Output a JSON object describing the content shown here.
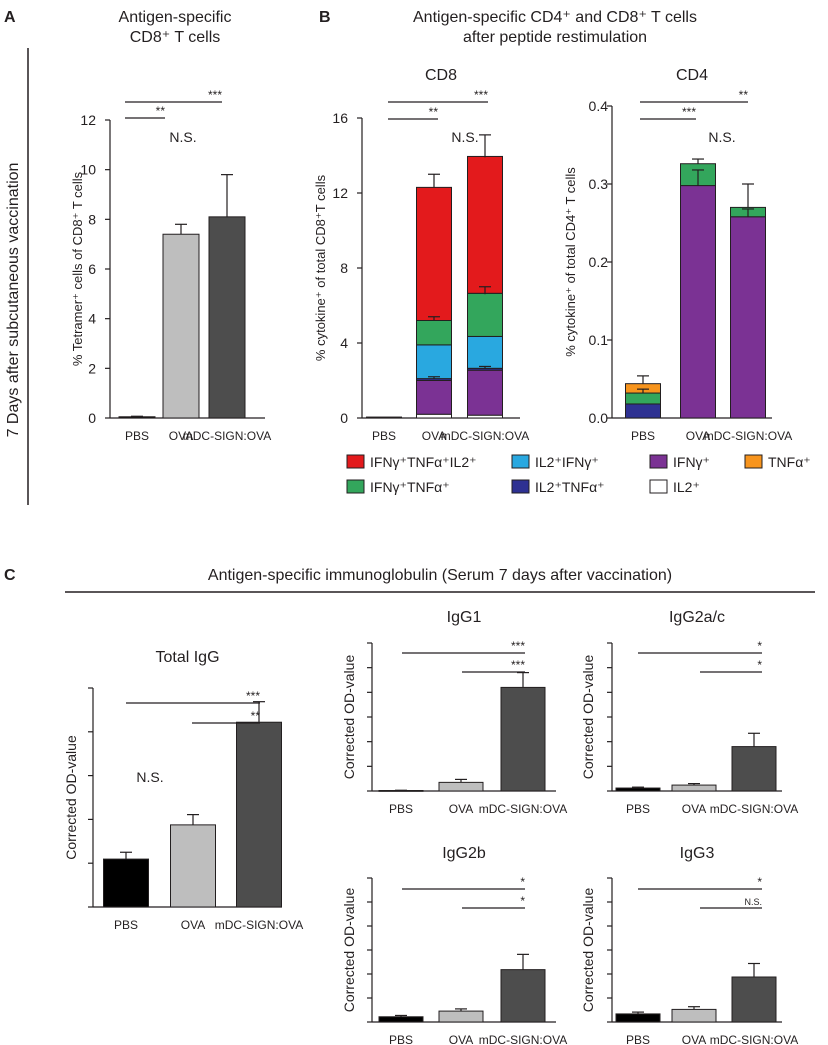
{
  "colors": {
    "pbs": "#000000",
    "ova": "#bebebe",
    "mdc": "#4d4d4d",
    "ifn_tnf_il2": "#e31a1c",
    "ifn_tnf": "#33a65c",
    "il2_ifn": "#29a8e0",
    "il2_tnf": "#2e3192",
    "ifn": "#7b3294",
    "il2": "#ffffff",
    "tnf": "#f7941d"
  },
  "panel_a": {
    "letter": "A",
    "title_line1": "Antigen-specific",
    "title_line2": "CD8⁺ T cells",
    "side_label": "7 Days after subcutaneous vaccination"
  },
  "panel_b": {
    "letter": "B",
    "title_line1": "Antigen-specific CD4⁺ and CD8⁺ T cells",
    "title_line2": "after peptide restimulation",
    "legend": [
      {
        "label": "IFNγ⁺TNFα⁺IL2⁺",
        "color": "#e31a1c"
      },
      {
        "label": "IL2⁺IFNγ⁺",
        "color": "#29a8e0"
      },
      {
        "label": "IFNγ⁺",
        "color": "#7b3294"
      },
      {
        "label": "TNFα⁺",
        "color": "#f7941d"
      },
      {
        "label": "IFNγ⁺TNFα⁺",
        "color": "#33a65c"
      },
      {
        "label": "IL2⁺TNFα⁺",
        "color": "#2e3192"
      },
      {
        "label": "IL2⁺",
        "color": "#ffffff"
      }
    ]
  },
  "panel_c": {
    "letter": "C",
    "title": "Antigen-specific immunoglobulin (Serum 7 days after vaccination)"
  },
  "chart_data": [
    {
      "id": "tetramer",
      "type": "bar",
      "title": "",
      "categories": [
        "PBS",
        "OVA",
        "mDC-SIGN:OVA"
      ],
      "values": [
        0.05,
        7.4,
        8.1
      ],
      "errors": [
        0.02,
        0.4,
        1.7
      ],
      "ylabel": "% Tetramer⁺ cells of CD8⁺ T cells",
      "ylim": [
        0,
        12
      ],
      "yticks": [
        "0",
        "2",
        "4",
        "6",
        "8",
        "10",
        "12"
      ],
      "significance": [
        {
          "from": 0,
          "to": 2,
          "label": "***"
        },
        {
          "from": 0,
          "to": 1,
          "label": "**"
        },
        {
          "from": 1,
          "to": 2,
          "label": "N.S."
        }
      ]
    },
    {
      "id": "cd8",
      "type": "stacked-bar",
      "title": "CD8",
      "categories": [
        "PBS",
        "OVA",
        "mDC-SIGN:OVA"
      ],
      "ylabel": "% cytokine⁺ of total CD8⁺T cells",
      "ylim": [
        0,
        16
      ],
      "yticks": [
        "0",
        "4",
        "8",
        "12",
        "16"
      ],
      "series": [
        {
          "name": "IL2⁺",
          "color": "#ffffff",
          "values": [
            0.05,
            0.2,
            0.15
          ]
        },
        {
          "name": "IFNγ⁺",
          "color": "#7b3294",
          "values": [
            0,
            1.8,
            2.4
          ]
        },
        {
          "name": "IL2⁺TNFα⁺",
          "color": "#2e3192",
          "values": [
            0,
            0.1,
            0.1
          ]
        },
        {
          "name": "IL2⁺IFNγ⁺",
          "color": "#29a8e0",
          "values": [
            0,
            1.8,
            1.7
          ]
        },
        {
          "name": "IFNγ⁺TNFα⁺",
          "color": "#33a65c",
          "values": [
            0,
            1.3,
            2.3
          ]
        },
        {
          "name": "IFNγ⁺TNFα⁺IL2⁺",
          "color": "#e31a1c",
          "values": [
            0,
            7.1,
            7.3
          ]
        }
      ],
      "error_bars": [
        {
          "cat": 1,
          "y": 2.1,
          "err": 0.1
        },
        {
          "cat": 2,
          "y": 2.65,
          "err": 0.1
        },
        {
          "cat": 1,
          "y": 5.2,
          "err": 0.2
        },
        {
          "cat": 2,
          "y": 6.6,
          "err": 0.4
        },
        {
          "cat": 1,
          "y": 12.3,
          "err": 0.7
        },
        {
          "cat": 2,
          "y": 13.9,
          "err": 1.2
        }
      ],
      "significance": [
        {
          "from": 0,
          "to": 2,
          "label": "***"
        },
        {
          "from": 0,
          "to": 1,
          "label": "**"
        },
        {
          "from": 1,
          "to": 2,
          "label": "N.S."
        }
      ]
    },
    {
      "id": "cd4",
      "type": "stacked-bar",
      "title": "CD4",
      "categories": [
        "PBS",
        "OVA",
        "mDC-SIGN:OVA"
      ],
      "ylabel": "% cytokine⁺ of total CD4⁺ T cells",
      "ylim": [
        0,
        0.4
      ],
      "yticks": [
        "0.0",
        "0.1",
        "0.2",
        "0.3",
        "0.4"
      ],
      "series": [
        {
          "name": "IFNγ⁺",
          "color": "#7b3294",
          "values": [
            0,
            0.298,
            0.258
          ]
        },
        {
          "name": "IL2⁺TNFα⁺",
          "color": "#2e3192",
          "values": [
            0.018,
            0,
            0
          ]
        },
        {
          "name": "IFNγ⁺TNFα⁺",
          "color": "#33a65c",
          "values": [
            0.014,
            0.028,
            0.012
          ]
        },
        {
          "name": "TNFα⁺",
          "color": "#f7941d",
          "values": [
            0.012,
            0,
            0
          ]
        }
      ],
      "error_bars": [
        {
          "cat": 0,
          "y": 0.032,
          "err": 0.005
        },
        {
          "cat": 0,
          "y": 0.044,
          "err": 0.01
        },
        {
          "cat": 1,
          "y": 0.298,
          "err": 0.02
        },
        {
          "cat": 1,
          "y": 0.326,
          "err": 0.006
        },
        {
          "cat": 2,
          "y": 0.258,
          "err": 0.01
        },
        {
          "cat": 2,
          "y": 0.27,
          "err": 0.03
        }
      ],
      "significance": [
        {
          "from": 0,
          "to": 2,
          "label": "**"
        },
        {
          "from": 0,
          "to": 1,
          "label": "***"
        },
        {
          "from": 1,
          "to": 2,
          "label": "N.S."
        }
      ]
    },
    {
      "id": "total_igg",
      "type": "bar",
      "title": "Total IgG",
      "categories": [
        "PBS",
        "OVA",
        "mDC-SIGN:OVA"
      ],
      "values": [
        0.7,
        1.2,
        2.7
      ],
      "errors": [
        0.1,
        0.15,
        0.3
      ],
      "ylabel": "Corrected OD-value",
      "ylim": [
        0,
        3.2
      ],
      "significance": [
        {
          "from": 0,
          "to": 2,
          "label": "***"
        },
        {
          "from": 1,
          "to": 2,
          "label": "**"
        },
        {
          "from": 0,
          "to": 1,
          "label": "N.S."
        }
      ]
    },
    {
      "id": "igg1",
      "type": "bar",
      "title": "IgG1",
      "categories": [
        "PBS",
        "OVA",
        "mDC-SIGN:OVA"
      ],
      "values": [
        0.02,
        0.35,
        4.2
      ],
      "errors": [
        0.01,
        0.12,
        0.6
      ],
      "ylabel": "Corrected OD-value",
      "ylim": [
        0,
        6
      ],
      "significance": [
        {
          "from": 0,
          "to": 2,
          "label": "***"
        },
        {
          "from": 1,
          "to": 2,
          "label": "***"
        }
      ]
    },
    {
      "id": "igg2ac",
      "type": "bar",
      "title": "IgG2a/c",
      "categories": [
        "PBS",
        "OVA",
        "mDC-SIGN:OVA"
      ],
      "values": [
        0.1,
        0.2,
        1.5
      ],
      "errors": [
        0.03,
        0.05,
        0.45
      ],
      "ylabel": "Corrected OD-value",
      "ylim": [
        0,
        5
      ],
      "significance": [
        {
          "from": 0,
          "to": 2,
          "label": "*"
        },
        {
          "from": 1,
          "to": 2,
          "label": "*"
        }
      ]
    },
    {
      "id": "igg2b",
      "type": "bar",
      "title": "IgG2b",
      "categories": [
        "PBS",
        "OVA",
        "mDC-SIGN:OVA"
      ],
      "values": [
        0.12,
        0.25,
        1.2
      ],
      "errors": [
        0.03,
        0.05,
        0.35
      ],
      "ylabel": "Corrected OD-value",
      "ylim": [
        0,
        3.3
      ],
      "significance": [
        {
          "from": 0,
          "to": 2,
          "label": "*"
        },
        {
          "from": 1,
          "to": 2,
          "label": "*"
        }
      ]
    },
    {
      "id": "igg3",
      "type": "bar",
      "title": "IgG3",
      "categories": [
        "PBS",
        "OVA",
        "mDC-SIGN:OVA"
      ],
      "values": [
        0.18,
        0.28,
        1.0
      ],
      "errors": [
        0.04,
        0.06,
        0.3
      ],
      "ylabel": "Corrected OD-value",
      "ylim": [
        0,
        3.2
      ],
      "significance": [
        {
          "from": 0,
          "to": 2,
          "label": "*"
        },
        {
          "from": 1,
          "to": 2,
          "label": "N.S."
        }
      ]
    }
  ]
}
